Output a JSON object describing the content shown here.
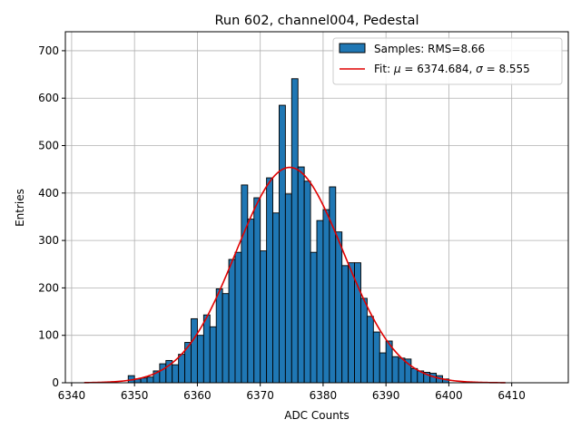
{
  "chart_data": {
    "type": "bar",
    "title": "Run 602, channel004, Pedestal",
    "xlabel": "ADC Counts",
    "ylabel": "Entries",
    "xlim": [
      6339,
      6419
    ],
    "ylim": [
      0,
      740
    ],
    "xticks": [
      6340,
      6350,
      6360,
      6370,
      6380,
      6390,
      6400,
      6410
    ],
    "yticks": [
      0,
      100,
      200,
      300,
      400,
      500,
      600,
      700
    ],
    "grid": true,
    "bin_width": 1,
    "bins_start": 6349,
    "counts": [
      15,
      8,
      10,
      12,
      25,
      40,
      47,
      38,
      60,
      85,
      135,
      100,
      143,
      118,
      198,
      188,
      260,
      275,
      417,
      345,
      390,
      278,
      432,
      358,
      585,
      398,
      641,
      455,
      425,
      275,
      342,
      365,
      413,
      318,
      247,
      253,
      253,
      178,
      140,
      107,
      63,
      88,
      55,
      52,
      50,
      30,
      25,
      22,
      20,
      15,
      8
    ],
    "fit": {
      "mu": 6374.684,
      "sigma": 8.555,
      "amplitude": 454,
      "x_range": [
        6342,
        6409
      ]
    },
    "legend": {
      "position": "top-right",
      "entries": [
        {
          "label": "Samples: RMS=8.66",
          "color": "#1f77b4"
        },
        {
          "label_prefix": "Fit: ",
          "label_mu": "μ",
          "label_mid": " = 6374.684, ",
          "label_sigma": "σ",
          "label_end": " = 8.555",
          "color": "#e00000"
        }
      ]
    }
  }
}
